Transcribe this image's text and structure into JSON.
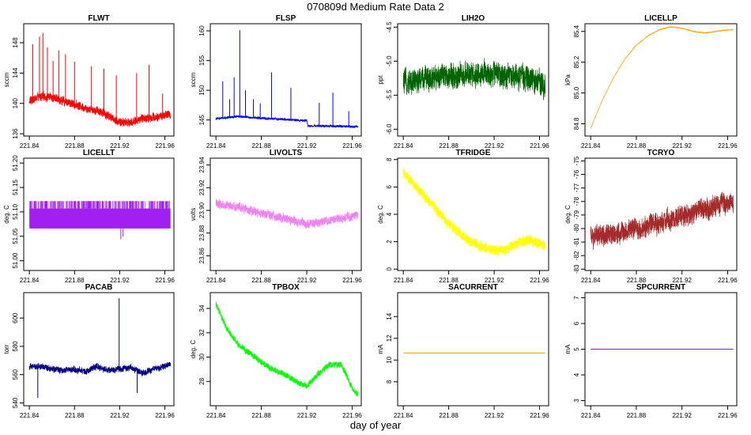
{
  "figure": {
    "title": "070809d   Medium Rate Data 2",
    "xlabel": "day of year"
  },
  "chart_data": [
    {
      "type": "line",
      "title": "FLWT",
      "ylabel": "sccm",
      "color": "#ff0000",
      "xlim": [
        221.835,
        221.968
      ],
      "ylim": [
        135.7,
        150.5
      ],
      "xticks": [
        221.84,
        221.88,
        221.92,
        221.96
      ],
      "yticks": [
        136,
        140,
        144,
        148
      ],
      "ytick_labels": [
        "136",
        "140",
        "144",
        "148"
      ],
      "series": {
        "x": [
          221.84,
          221.85,
          221.86,
          221.87,
          221.88,
          221.89,
          221.9,
          221.91,
          221.92,
          221.93,
          221.94,
          221.95,
          221.96,
          221.965
        ],
        "y": [
          140.3,
          140.9,
          140.8,
          140.3,
          139.9,
          139.4,
          139.1,
          138.4,
          137.5,
          137.5,
          138.0,
          138.2,
          138.4,
          138.5
        ]
      },
      "noise": 1.0,
      "spikes": [
        [
          221.843,
          147.8
        ],
        [
          221.849,
          148.8
        ],
        [
          221.852,
          149.3
        ],
        [
          221.856,
          147.4
        ],
        [
          221.861,
          145.6
        ],
        [
          221.866,
          147.0
        ],
        [
          221.872,
          146.5
        ],
        [
          221.88,
          145.5
        ],
        [
          221.895,
          144.9
        ],
        [
          221.906,
          144.6
        ],
        [
          221.917,
          143.7
        ],
        [
          221.935,
          144.0
        ],
        [
          221.946,
          145.1
        ],
        [
          221.958,
          141.3
        ]
      ]
    },
    {
      "type": "line",
      "title": "FLSP",
      "ylabel": "sccm",
      "color": "#0000ff",
      "xlim": [
        221.835,
        221.968
      ],
      "ylim": [
        142.3,
        161.2
      ],
      "xticks": [
        221.84,
        221.88,
        221.92,
        221.96
      ],
      "yticks": [
        145,
        150,
        155,
        160
      ],
      "ytick_labels": [
        "145",
        "150",
        "155",
        "160"
      ],
      "series": {
        "x": [
          221.84,
          221.86,
          221.88,
          221.9,
          221.92,
          221.921,
          221.94,
          221.96,
          221.965
        ],
        "y": [
          145.2,
          145.6,
          145.3,
          145.1,
          144.9,
          144.0,
          144.0,
          143.9,
          143.9
        ]
      },
      "noise": 0.35,
      "spikes": [
        [
          221.846,
          151.5
        ],
        [
          221.852,
          148.5
        ],
        [
          221.856,
          152.2
        ],
        [
          221.861,
          160.1
        ],
        [
          221.866,
          150.0
        ],
        [
          221.873,
          148.5
        ],
        [
          221.879,
          147.8
        ],
        [
          221.889,
          153.0
        ],
        [
          221.906,
          150.4
        ],
        [
          221.931,
          147.9
        ],
        [
          221.943,
          149.6
        ],
        [
          221.957,
          146.5
        ]
      ]
    },
    {
      "type": "line",
      "title": "LIH2O",
      "ylabel": "ppt",
      "color": "#006400",
      "xlim": [
        221.835,
        221.968
      ],
      "ylim": [
        -6.1,
        -4.45
      ],
      "xticks": [
        221.84,
        221.88,
        221.92,
        221.96
      ],
      "yticks": [
        -6.0,
        -5.5,
        -5.0,
        -4.5
      ],
      "ytick_labels": [
        "-6.0",
        "-5.5",
        "-5.0",
        "-4.5"
      ],
      "series": {
        "x": [
          221.84,
          221.86,
          221.88,
          221.9,
          221.92,
          221.94,
          221.96,
          221.965
        ],
        "y": [
          -5.32,
          -5.25,
          -5.22,
          -5.2,
          -5.18,
          -5.22,
          -5.32,
          -5.35
        ]
      },
      "noise": 0.32,
      "spikes": []
    },
    {
      "type": "line",
      "title": "LICELLP",
      "ylabel": "kPa",
      "color": "#ffa500",
      "xlim": [
        221.835,
        221.968
      ],
      "ylim": [
        84.72,
        85.45
      ],
      "xticks": [
        221.84,
        221.88,
        221.92,
        221.96
      ],
      "yticks": [
        84.8,
        85.0,
        85.2,
        85.4
      ],
      "ytick_labels": [
        "84.8",
        "85.0",
        "85.2",
        "85.4"
      ],
      "series": {
        "x": [
          221.84,
          221.85,
          221.86,
          221.87,
          221.88,
          221.89,
          221.9,
          221.91,
          221.92,
          221.93,
          221.94,
          221.95,
          221.96,
          221.965
        ],
        "y": [
          84.77,
          84.95,
          85.1,
          85.22,
          85.31,
          85.37,
          85.41,
          85.43,
          85.42,
          85.4,
          85.39,
          85.4,
          85.41,
          85.41
        ]
      },
      "noise": 0.006,
      "spikes": []
    },
    {
      "type": "line",
      "title": "LICELLT",
      "ylabel": "deg. C",
      "color": "#a020f0",
      "xlim": [
        221.835,
        221.968
      ],
      "ylim": [
        50.98,
        51.21
      ],
      "xticks": [
        221.84,
        221.88,
        221.92,
        221.96
      ],
      "yticks": [
        51.0,
        51.05,
        51.1,
        51.15,
        51.2
      ],
      "ytick_labels": [
        "51.00",
        "51.05",
        "51.10",
        "51.15",
        "51.20"
      ],
      "band": [
        51.066,
        51.107,
        51.122
      ],
      "dips": [
        [
          221.921,
          51.044
        ],
        [
          221.923,
          51.05
        ]
      ]
    },
    {
      "type": "line",
      "title": "LIVOLTS",
      "ylabel": "volts",
      "color": "#ee82ee",
      "xlim": [
        221.835,
        221.968
      ],
      "ylim": [
        23.847,
        23.946
      ],
      "xticks": [
        221.84,
        221.88,
        221.92,
        221.96
      ],
      "yticks": [
        23.86,
        23.88,
        23.9,
        23.92,
        23.94
      ],
      "ytick_labels": [
        "23.86",
        "23.88",
        "23.90",
        "23.92",
        "23.94"
      ],
      "series": {
        "x": [
          221.84,
          221.86,
          221.88,
          221.9,
          221.92,
          221.94,
          221.96,
          221.965
        ],
        "y": [
          23.906,
          23.903,
          23.897,
          23.893,
          23.888,
          23.891,
          23.895,
          23.896
        ]
      },
      "noise": 0.007,
      "spikes": []
    },
    {
      "type": "line",
      "title": "TFRIDGE",
      "ylabel": "deg. C",
      "color": "#ffff00",
      "xlim": [
        221.835,
        221.968
      ],
      "ylim": [
        -0.1,
        8.1
      ],
      "xticks": [
        221.84,
        221.88,
        221.92,
        221.96
      ],
      "yticks": [
        0,
        2,
        4,
        6,
        8
      ],
      "ytick_labels": [
        "0",
        "2",
        "4",
        "6",
        "8"
      ],
      "series": {
        "x": [
          221.84,
          221.85,
          221.86,
          221.87,
          221.88,
          221.89,
          221.9,
          221.91,
          221.92,
          221.93,
          221.94,
          221.95,
          221.96,
          221.965
        ],
        "y": [
          7.0,
          6.1,
          5.2,
          4.3,
          3.3,
          2.6,
          2.0,
          1.6,
          1.3,
          1.4,
          1.9,
          2.1,
          1.9,
          1.6
        ]
      },
      "noise": 0.7,
      "spikes": []
    },
    {
      "type": "line",
      "title": "TCRYO",
      "ylabel": "deg. C",
      "color": "#a52a2a",
      "xlim": [
        221.835,
        221.968
      ],
      "ylim": [
        -83.1,
        -74.8
      ],
      "xticks": [
        221.84,
        221.88,
        221.92,
        221.96
      ],
      "yticks": [
        -83,
        -82,
        -81,
        -80,
        -79,
        -78,
        -77,
        -76,
        -75
      ],
      "ytick_labels": [
        "-83",
        "-82",
        "-81",
        "-80",
        "-79",
        "-78",
        "-77",
        "-76",
        "-75"
      ],
      "series": {
        "x": [
          221.84,
          221.86,
          221.88,
          221.9,
          221.92,
          221.94,
          221.96,
          221.965
        ],
        "y": [
          -80.6,
          -80.4,
          -80.0,
          -79.6,
          -79.1,
          -78.6,
          -78.1,
          -78.0
        ]
      },
      "noise": 1.4,
      "spikes": []
    },
    {
      "type": "line",
      "title": "PACAB",
      "ylabel": "torr",
      "color": "#000080",
      "xlim": [
        221.835,
        221.968
      ],
      "ylim": [
        538,
        618
      ],
      "xticks": [
        221.84,
        221.88,
        221.92,
        221.96
      ],
      "yticks": [
        540,
        560,
        580,
        600
      ],
      "ytick_labels": [
        "540",
        "560",
        "580",
        "600"
      ],
      "series": {
        "x": [
          221.84,
          221.85,
          221.86,
          221.87,
          221.88,
          221.89,
          221.9,
          221.91,
          221.92,
          221.93,
          221.94,
          221.95,
          221.96,
          221.965
        ],
        "y": [
          566,
          566,
          564,
          563,
          564,
          562,
          566,
          563,
          564,
          565,
          561,
          564,
          566,
          568
        ]
      },
      "noise": 4.0,
      "spikes": [
        [
          221.9195,
          614.0
        ],
        [
          221.8475,
          543.5
        ],
        [
          221.9355,
          547.0
        ]
      ]
    },
    {
      "type": "line",
      "title": "TPBOX",
      "ylabel": "deg. C",
      "color": "#00ff00",
      "xlim": [
        221.835,
        221.968
      ],
      "ylim": [
        26.0,
        35.3
      ],
      "xticks": [
        221.84,
        221.88,
        221.92,
        221.96
      ],
      "yticks": [
        28,
        30,
        32,
        34
      ],
      "ytick_labels": [
        "28",
        "30",
        "32",
        "34"
      ],
      "series": {
        "x": [
          221.84,
          221.85,
          221.86,
          221.87,
          221.88,
          221.89,
          221.9,
          221.91,
          221.92,
          221.93,
          221.94,
          221.95,
          221.955,
          221.96,
          221.965
        ],
        "y": [
          34.4,
          32.3,
          31.0,
          30.3,
          29.6,
          29.0,
          28.6,
          28.0,
          27.6,
          28.6,
          29.4,
          29.4,
          28.6,
          27.4,
          26.9
        ]
      },
      "noise": 0.45,
      "spikes": []
    },
    {
      "type": "line",
      "title": "SACURRENT",
      "ylabel": "mA",
      "color": "#ffa500",
      "xlim": [
        221.835,
        221.968
      ],
      "ylim": [
        5.8,
        16.2
      ],
      "xticks": [
        221.84,
        221.88,
        221.92,
        221.96
      ],
      "yticks": [
        8,
        10,
        12,
        14
      ],
      "ytick_labels": [
        "8",
        "10",
        "12",
        "14"
      ],
      "series": {
        "x": [
          221.84,
          221.965
        ],
        "y": [
          10.65,
          10.65
        ]
      },
      "noise": 0,
      "spikes": []
    },
    {
      "type": "line",
      "title": "SPCURRENT",
      "ylabel": "mA",
      "color": "#9932cc",
      "xlim": [
        221.835,
        221.968
      ],
      "ylim": [
        2.8,
        7.2
      ],
      "xticks": [
        221.84,
        221.88,
        221.92,
        221.96
      ],
      "yticks": [
        3,
        4,
        5,
        6,
        7
      ],
      "ytick_labels": [
        "3",
        "4",
        "5",
        "6",
        "7"
      ],
      "series": {
        "x": [
          221.84,
          221.965
        ],
        "y": [
          5.0,
          5.0
        ]
      },
      "noise": 0,
      "spikes": []
    }
  ]
}
